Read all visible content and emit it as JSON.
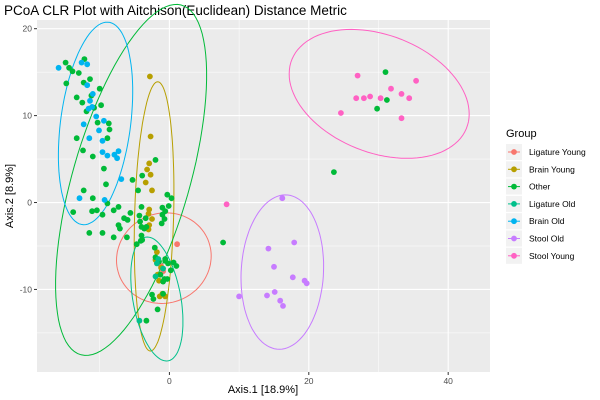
{
  "chart_data": {
    "type": "scatter",
    "title": "PCoA CLR Plot with Aitchison(Euclidean) Distance Metric",
    "xlabel": "Axis.1   [18.9%]",
    "ylabel": "Axis.2   [8.9%]",
    "xlim": [
      -19,
      46
    ],
    "ylim": [
      -19.5,
      21
    ],
    "x_ticks": [
      0,
      20,
      40
    ],
    "y_ticks": [
      -10,
      0,
      10,
      20
    ],
    "x_tick_labels": [
      "0",
      "20",
      "40"
    ],
    "y_tick_labels": [
      "-10",
      "0",
      "10",
      "20"
    ],
    "grid": true,
    "legend": {
      "title": "Group",
      "position": "right"
    },
    "series": [
      {
        "name": "Ligature Young",
        "color": "#F8766D",
        "points": [
          [
            1.1,
            -4.8
          ],
          [
            -1.8,
            -6.8
          ],
          [
            -0.9,
            -7.9
          ],
          [
            -1.2,
            -7.3
          ]
        ],
        "ellipse": {
          "cx": -0.8,
          "cy": -6.4,
          "rx": 6.8,
          "ry": 5.2,
          "angle": 5
        }
      },
      {
        "name": "Brain Young",
        "color": "#B79F00",
        "points": [
          [
            -2.8,
            14.5
          ],
          [
            -2.7,
            7.6
          ],
          [
            -2.9,
            4.5
          ],
          [
            -3.2,
            3.8
          ],
          [
            -2.7,
            3.2
          ],
          [
            -3.4,
            2.3
          ],
          [
            -2.5,
            1.4
          ],
          [
            -2.9,
            -0.8
          ],
          [
            -3.0,
            -1.3
          ],
          [
            -2.5,
            -1.9
          ],
          [
            -2.9,
            -2.6
          ],
          [
            -3.0,
            -3.1
          ],
          [
            -1.8,
            -5.7
          ],
          [
            -2.0,
            -6.6
          ],
          [
            -1.2,
            -7.5
          ],
          [
            -1.7,
            -8.3
          ],
          [
            -1.5,
            -9.0
          ],
          [
            -1.0,
            -10.5
          ],
          [
            -1.4,
            -10.8
          ],
          [
            -0.6,
            -10.8
          ]
        ],
        "ellipse": {
          "cx": -2.2,
          "cy": -1.6,
          "rx": 2.8,
          "ry": 15.5,
          "angle": -2
        }
      },
      {
        "name": "Other",
        "color": "#00BA38",
        "points": [
          [
            -14.9,
            16.1
          ],
          [
            -14.4,
            15.5
          ],
          [
            -13.9,
            15.1
          ],
          [
            -13.0,
            14.9
          ],
          [
            -12.2,
            16.5
          ],
          [
            -12.3,
            13.8
          ],
          [
            -14.8,
            13.7
          ],
          [
            -13.3,
            12.1
          ],
          [
            -11.4,
            14.2
          ],
          [
            -12.5,
            11.5
          ],
          [
            -11.9,
            10.5
          ],
          [
            -11.2,
            12.3
          ],
          [
            -10.8,
            10.9
          ],
          [
            -10.0,
            13.1
          ],
          [
            -9.8,
            11.2
          ],
          [
            -10.3,
            9.2
          ],
          [
            -8.7,
            9.1
          ],
          [
            -8.6,
            8.4
          ],
          [
            -8.9,
            7.4
          ],
          [
            -13.3,
            7.4
          ],
          [
            -12.4,
            6.0
          ],
          [
            -11.0,
            5.3
          ],
          [
            -9.4,
            3.9
          ],
          [
            -9.1,
            2.1
          ],
          [
            -12.3,
            1.4
          ],
          [
            -11.0,
            0.5
          ],
          [
            -8.9,
            -0.1
          ],
          [
            -13.8,
            -1.1
          ],
          [
            -11.1,
            -1.0
          ],
          [
            -10.4,
            -0.9
          ],
          [
            -9.6,
            -1.4
          ],
          [
            -8.0,
            -0.9
          ],
          [
            -7.3,
            -0.5
          ],
          [
            -5.6,
            -1.2
          ],
          [
            -5.3,
            2.6
          ],
          [
            -3.9,
            3.1
          ],
          [
            -4.5,
            1.4
          ],
          [
            -4.0,
            -0.5
          ],
          [
            -4.3,
            -1.5
          ],
          [
            -3.4,
            -1.8
          ],
          [
            -4.2,
            -2.2
          ],
          [
            -4.0,
            -2.8
          ],
          [
            -3.6,
            -3.0
          ],
          [
            -3.3,
            -2.8
          ],
          [
            -4.0,
            -3.8
          ],
          [
            -3.9,
            -4.3
          ],
          [
            -4.7,
            -4.8
          ],
          [
            -6.1,
            -4.0
          ],
          [
            -7.3,
            -2.6
          ],
          [
            -7.1,
            -3.0
          ],
          [
            -8.0,
            -4.0
          ],
          [
            -6.5,
            -1.8
          ],
          [
            -11.5,
            -3.5
          ],
          [
            -9.6,
            -3.5
          ],
          [
            -6.0,
            -2.0
          ],
          [
            -2.0,
            4.9
          ],
          [
            -1.0,
            -0.6
          ],
          [
            -0.6,
            -1.0
          ],
          [
            -0.3,
            0.9
          ],
          [
            -1.0,
            -1.4
          ],
          [
            0.3,
            0.5
          ],
          [
            -0.7,
            -1.9
          ],
          [
            -1.1,
            -2.4
          ],
          [
            -0.1,
            -0.4
          ],
          [
            -4.1,
            -4.4
          ],
          [
            -2.1,
            -5.2
          ],
          [
            -2.0,
            -6.3
          ],
          [
            -1.5,
            -6.8
          ],
          [
            -0.6,
            -6.7
          ],
          [
            -0.2,
            -7.0
          ],
          [
            0.6,
            -6.9
          ],
          [
            1.0,
            -7.3
          ],
          [
            0.2,
            -7.8
          ],
          [
            -0.3,
            -8.8
          ],
          [
            -0.7,
            -8.8
          ],
          [
            -1.3,
            -8.3
          ],
          [
            -0.9,
            -9.1
          ],
          [
            -2.5,
            -10.6
          ],
          [
            -0.9,
            -10.5
          ],
          [
            -1.7,
            -12.3
          ],
          [
            -2.3,
            -11.1
          ],
          [
            -3.3,
            -13.6
          ],
          [
            -0.6,
            -6.5
          ],
          [
            31.0,
            15.0
          ],
          [
            31.2,
            11.8
          ],
          [
            29.8,
            10.8
          ],
          [
            23.6,
            3.5
          ],
          [
            7.7,
            -4.6
          ]
        ],
        "ellipse": {
          "cx": -5.5,
          "cy": 2.6,
          "rx": 8.2,
          "ry": 21.4,
          "angle": -21
        }
      },
      {
        "name": "Ligature Old",
        "color": "#00C08B",
        "points": [
          [
            -1.8,
            -7.0
          ],
          [
            -0.9,
            -7.6
          ],
          [
            -1.6,
            -6.5
          ],
          [
            -4.3,
            -13.6
          ],
          [
            -2.0,
            -8.5
          ]
        ],
        "ellipse": {
          "cx": -1.8,
          "cy": -11.1,
          "rx": 3.4,
          "ry": 7.3,
          "angle": 14
        }
      },
      {
        "name": "Brain Old",
        "color": "#00B4F0",
        "points": [
          [
            -15.9,
            15.5
          ],
          [
            -12.6,
            16.1
          ],
          [
            -11.8,
            15.9
          ],
          [
            -11.8,
            13.5
          ],
          [
            -11.0,
            12.5
          ],
          [
            -11.1,
            11.0
          ],
          [
            -11.6,
            10.8
          ],
          [
            -11.4,
            11.7
          ],
          [
            -10.5,
            9.9
          ],
          [
            -12.3,
            9.0
          ],
          [
            -9.4,
            9.4
          ],
          [
            -10.1,
            8.3
          ],
          [
            -11.5,
            7.4
          ],
          [
            -9.6,
            7.1
          ],
          [
            -9.6,
            5.8
          ],
          [
            -8.9,
            5.4
          ],
          [
            -7.9,
            5.5
          ],
          [
            -7.3,
            5.9
          ],
          [
            -7.5,
            5.1
          ],
          [
            -6.9,
            2.7
          ],
          [
            -12.9,
            0.5
          ],
          [
            -9.3,
            0.3
          ]
        ],
        "ellipse": {
          "cx": -10.6,
          "cy": 9.1,
          "rx": 5.0,
          "ry": 11.8,
          "angle": -10
        }
      },
      {
        "name": "Stool Old",
        "color": "#C77CFF",
        "points": [
          [
            16.2,
            0.5
          ],
          [
            17.9,
            -4.6
          ],
          [
            14.2,
            -5.3
          ],
          [
            15.0,
            -7.4
          ],
          [
            17.7,
            -8.6
          ],
          [
            19.4,
            -9.0
          ],
          [
            19.7,
            -9.3
          ],
          [
            15.9,
            -11.3
          ],
          [
            15.1,
            -10.3
          ],
          [
            14.0,
            -10.7
          ],
          [
            16.3,
            -11.9
          ],
          [
            10.0,
            -10.8
          ]
        ],
        "ellipse": {
          "cx": 16.2,
          "cy": -8.0,
          "rx": 5.9,
          "ry": 8.9,
          "angle": -5
        }
      },
      {
        "name": "Stool Young",
        "color": "#FF61C3",
        "points": [
          [
            27.0,
            14.6
          ],
          [
            31.8,
            13.1
          ],
          [
            35.4,
            14.0
          ],
          [
            28.8,
            12.2
          ],
          [
            30.3,
            12.0
          ],
          [
            33.3,
            12.5
          ],
          [
            26.8,
            12.0
          ],
          [
            27.9,
            12.0
          ],
          [
            34.4,
            12.0
          ],
          [
            24.6,
            10.3
          ],
          [
            33.3,
            9.7
          ],
          [
            8.2,
            -0.2
          ]
        ],
        "ellipse": {
          "cx": 30.1,
          "cy": 12.5,
          "rx": 13.2,
          "ry": 6.9,
          "angle": -14
        }
      }
    ]
  }
}
